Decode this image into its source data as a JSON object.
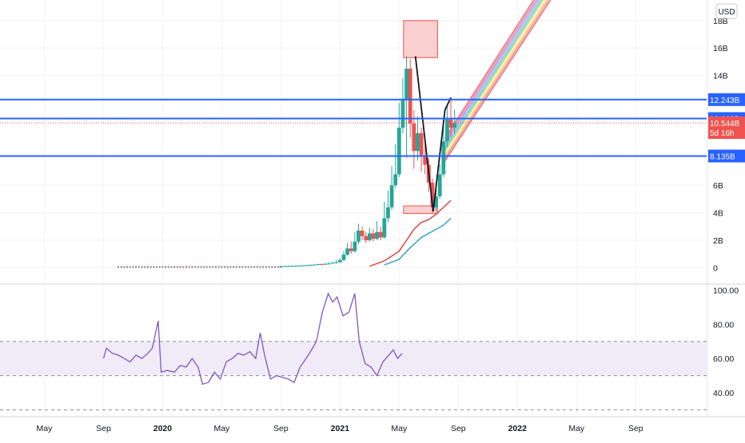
{
  "currency_button": "USD",
  "colors": {
    "up": "#26a69a",
    "down": "#ef5350",
    "hline": "#2962ff",
    "ma_fast": "#e53935",
    "ma_slow": "#26a0bd",
    "rsi": "#7e57c2",
    "rsi_band": "#ede7f6",
    "zone_fill": "#f8bbbb",
    "zone_stroke": "#ef5350",
    "grid": "#f2f3f5",
    "text": "#131722"
  },
  "chart_data": {
    "type": "candlestick",
    "y_unit": "B",
    "ylim": [
      -1.2,
      19.5
    ],
    "y_ticks": [
      "0",
      "2B",
      "4B",
      "6B",
      "14B",
      "16B",
      "18B"
    ],
    "x_ticks": [
      "May",
      "Sep",
      "2020",
      "May",
      "Sep",
      "2021",
      "May",
      "Sep",
      "2022",
      "May",
      "Sep"
    ],
    "x_tick_months": [
      4,
      8,
      12,
      16,
      20,
      24,
      28,
      32,
      36,
      40,
      44
    ],
    "x_range_months": [
      1.0,
      48.8
    ],
    "horizontal_levels": [
      {
        "value": 12.243,
        "label": "12.243B"
      },
      {
        "value": 10.863,
        "label": "10.863B"
      },
      {
        "value": 8.135,
        "label": "8.135B"
      }
    ],
    "last_price": {
      "value": 10.544,
      "label": "10.544B",
      "countdown": "5d 16h"
    },
    "supply_zone": {
      "x": [
        28.3,
        30.6
      ],
      "y": [
        15.3,
        18.0
      ]
    },
    "demand_zone": {
      "x": [
        28.3,
        30.6
      ],
      "y": [
        3.95,
        4.5
      ]
    },
    "pattern_line": [
      [
        29.1,
        15.4
      ],
      [
        30.3,
        4.1
      ],
      [
        31.1,
        11.5
      ],
      [
        31.5,
        12.4
      ]
    ],
    "candles": [
      [
        20.0,
        0.1,
        0.11,
        0.08,
        0.14
      ],
      [
        20.25,
        0.11,
        0.12,
        0.09,
        0.15
      ],
      [
        20.5,
        0.12,
        0.12,
        0.1,
        0.16
      ],
      [
        20.75,
        0.12,
        0.13,
        0.1,
        0.17
      ],
      [
        21.0,
        0.13,
        0.14,
        0.11,
        0.18
      ],
      [
        21.25,
        0.14,
        0.15,
        0.12,
        0.19
      ],
      [
        21.5,
        0.15,
        0.16,
        0.13,
        0.2
      ],
      [
        21.75,
        0.16,
        0.18,
        0.14,
        0.22
      ],
      [
        22.0,
        0.18,
        0.2,
        0.16,
        0.24
      ],
      [
        22.25,
        0.2,
        0.22,
        0.18,
        0.26
      ],
      [
        22.5,
        0.22,
        0.25,
        0.2,
        0.3
      ],
      [
        22.75,
        0.25,
        0.22,
        0.18,
        0.32
      ],
      [
        23.0,
        0.22,
        0.28,
        0.2,
        0.34
      ],
      [
        23.25,
        0.28,
        0.3,
        0.25,
        0.4
      ],
      [
        23.5,
        0.3,
        0.35,
        0.27,
        0.45
      ],
      [
        23.75,
        0.35,
        0.4,
        0.3,
        0.55
      ],
      [
        24.0,
        0.4,
        0.55,
        0.35,
        0.7
      ],
      [
        24.25,
        0.55,
        0.95,
        0.5,
        1.2
      ],
      [
        24.5,
        0.95,
        1.4,
        0.85,
        1.8
      ],
      [
        24.75,
        1.4,
        1.2,
        1.0,
        1.9
      ],
      [
        25.0,
        1.2,
        1.9,
        1.1,
        2.6
      ],
      [
        25.25,
        1.9,
        2.7,
        1.7,
        3.2
      ],
      [
        25.5,
        2.7,
        2.3,
        2.0,
        3.0
      ],
      [
        25.75,
        2.3,
        2.0,
        1.8,
        2.6
      ],
      [
        26.0,
        2.0,
        2.5,
        1.9,
        2.9
      ],
      [
        26.25,
        2.5,
        2.1,
        1.9,
        2.8
      ],
      [
        26.5,
        2.1,
        2.6,
        2.0,
        3.4
      ],
      [
        26.75,
        2.6,
        2.2,
        2.0,
        3.0
      ],
      [
        27.0,
        2.2,
        3.6,
        2.1,
        4.8
      ],
      [
        27.25,
        3.6,
        4.4,
        3.3,
        5.6
      ],
      [
        27.5,
        4.4,
        6.0,
        4.2,
        7.4
      ],
      [
        27.75,
        6.0,
        6.8,
        5.8,
        9.0
      ],
      [
        28.0,
        6.8,
        10.2,
        6.6,
        12.0
      ],
      [
        28.25,
        10.2,
        12.2,
        9.8,
        13.8
      ],
      [
        28.5,
        12.2,
        14.5,
        8.0,
        15.4
      ],
      [
        28.75,
        14.5,
        10.5,
        9.5,
        15.2
      ],
      [
        29.0,
        10.5,
        8.5,
        7.2,
        11.5
      ],
      [
        29.25,
        8.5,
        9.8,
        7.8,
        11.0
      ],
      [
        29.5,
        9.8,
        8.2,
        7.0,
        10.2
      ],
      [
        29.75,
        8.2,
        7.5,
        6.8,
        9.0
      ],
      [
        30.0,
        7.5,
        6.2,
        5.5,
        8.0
      ],
      [
        30.25,
        6.2,
        4.4,
        4.0,
        6.5
      ],
      [
        30.5,
        4.4,
        5.2,
        4.1,
        6.0
      ],
      [
        30.75,
        5.2,
        6.8,
        5.0,
        7.5
      ],
      [
        31.0,
        6.8,
        9.2,
        6.6,
        10.5
      ],
      [
        31.25,
        9.2,
        10.8,
        8.8,
        11.8
      ],
      [
        31.5,
        10.8,
        10.2,
        9.5,
        12.2
      ],
      [
        31.75,
        10.2,
        10.54,
        9.8,
        11.5
      ]
    ],
    "ma_fast": [
      [
        26.0,
        0.1
      ],
      [
        27.0,
        0.5
      ],
      [
        28.0,
        1.2
      ],
      [
        28.5,
        2.0
      ],
      [
        29.0,
        2.8
      ],
      [
        29.5,
        3.3
      ],
      [
        30.0,
        3.5
      ],
      [
        30.5,
        3.9
      ],
      [
        31.0,
        4.4
      ],
      [
        31.5,
        4.9
      ]
    ],
    "ma_slow": [
      [
        27.0,
        0.2
      ],
      [
        28.0,
        0.6
      ],
      [
        28.5,
        1.2
      ],
      [
        29.0,
        1.7
      ],
      [
        29.5,
        2.2
      ],
      [
        30.0,
        2.5
      ],
      [
        30.5,
        2.8
      ],
      [
        31.0,
        3.1
      ],
      [
        31.5,
        3.6
      ]
    ],
    "rsi": {
      "y_ticks": [
        "100.00",
        "80.00",
        "60.00",
        "40.00"
      ],
      "ylim": [
        26,
        103
      ],
      "band": [
        50,
        70
      ],
      "dashed_levels": [
        70,
        50,
        30
      ],
      "values": [
        [
          8.0,
          60
        ],
        [
          8.2,
          66
        ],
        [
          8.6,
          63
        ],
        [
          9.0,
          62
        ],
        [
          9.4,
          60
        ],
        [
          9.8,
          58
        ],
        [
          10.2,
          62
        ],
        [
          10.6,
          60
        ],
        [
          11.0,
          63
        ],
        [
          11.3,
          66
        ],
        [
          11.7,
          82
        ],
        [
          11.9,
          52
        ],
        [
          12.3,
          53
        ],
        [
          12.8,
          52
        ],
        [
          13.2,
          56
        ],
        [
          13.6,
          55
        ],
        [
          14.0,
          60
        ],
        [
          14.4,
          55
        ],
        [
          14.7,
          45
        ],
        [
          15.1,
          46
        ],
        [
          15.5,
          52
        ],
        [
          15.9,
          48
        ],
        [
          16.3,
          58
        ],
        [
          16.7,
          60
        ],
        [
          17.1,
          63
        ],
        [
          17.5,
          62
        ],
        [
          17.9,
          64
        ],
        [
          18.3,
          60
        ],
        [
          18.6,
          75
        ],
        [
          18.9,
          62
        ],
        [
          19.3,
          48
        ],
        [
          19.7,
          50
        ],
        [
          20.1,
          49
        ],
        [
          20.5,
          48
        ],
        [
          20.9,
          46
        ],
        [
          21.3,
          55
        ],
        [
          21.7,
          60
        ],
        [
          22.0,
          64
        ],
        [
          22.4,
          70
        ],
        [
          22.8,
          87
        ],
        [
          23.2,
          98
        ],
        [
          23.5,
          93
        ],
        [
          23.8,
          96
        ],
        [
          24.2,
          85
        ],
        [
          24.6,
          87
        ],
        [
          25.0,
          98
        ],
        [
          25.3,
          70
        ],
        [
          25.7,
          57
        ],
        [
          26.1,
          55
        ],
        [
          26.5,
          50
        ],
        [
          26.9,
          58
        ],
        [
          27.3,
          62
        ],
        [
          27.6,
          65
        ],
        [
          27.9,
          60
        ],
        [
          28.2,
          63
        ]
      ]
    }
  }
}
